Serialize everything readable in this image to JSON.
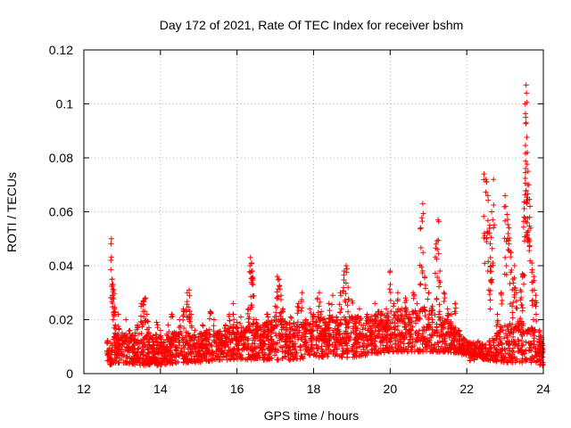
{
  "chart_data": {
    "type": "scatter",
    "title": "Day 172 of 2021, Rate Of TEC Index for receiver bshm",
    "xlabel": "GPS time / hours",
    "ylabel": "ROTI / TECUs",
    "xlim": [
      12,
      24
    ],
    "ylim": [
      0,
      0.12
    ],
    "xticks": [
      12,
      14,
      16,
      18,
      20,
      22,
      24
    ],
    "xtick_labels": [
      "12",
      "14",
      "16",
      "18",
      "20",
      "22",
      "24"
    ],
    "yticks": [
      0,
      0.02,
      0.04,
      0.06,
      0.08,
      0.1,
      0.12
    ],
    "ytick_labels": [
      "0",
      "0.02",
      "0.04",
      "0.06",
      "0.08",
      "0.1",
      "0.12"
    ],
    "grid": true,
    "marker": "+",
    "color": "#ff0000",
    "series": [
      {
        "name": "ROTI",
        "points": [
          [
            12.62,
            0.012
          ],
          [
            12.68,
            0.006
          ],
          [
            12.72,
            0.05
          ],
          [
            12.74,
            0.035
          ],
          [
            12.76,
            0.033
          ],
          [
            12.78,
            0.031
          ],
          [
            12.8,
            0.024
          ],
          [
            12.82,
            0.018
          ],
          [
            12.9,
            0.022
          ],
          [
            13.0,
            0.015
          ],
          [
            13.1,
            0.02
          ],
          [
            13.2,
            0.016
          ],
          [
            13.3,
            0.012
          ],
          [
            13.4,
            0.018
          ],
          [
            13.5,
            0.026
          ],
          [
            13.55,
            0.027
          ],
          [
            13.6,
            0.028
          ],
          [
            13.65,
            0.022
          ],
          [
            13.7,
            0.017
          ],
          [
            13.8,
            0.014
          ],
          [
            13.9,
            0.019
          ],
          [
            14.0,
            0.016
          ],
          [
            14.1,
            0.01
          ],
          [
            14.2,
            0.018
          ],
          [
            14.3,
            0.022
          ],
          [
            14.4,
            0.015
          ],
          [
            14.5,
            0.02
          ],
          [
            14.6,
            0.024
          ],
          [
            14.7,
            0.03
          ],
          [
            14.75,
            0.031
          ],
          [
            14.8,
            0.022
          ],
          [
            14.9,
            0.016
          ],
          [
            15.0,
            0.012
          ],
          [
            15.1,
            0.018
          ],
          [
            15.2,
            0.016
          ],
          [
            15.3,
            0.023
          ],
          [
            15.4,
            0.02
          ],
          [
            15.5,
            0.015
          ],
          [
            15.6,
            0.012
          ],
          [
            15.7,
            0.018
          ],
          [
            15.8,
            0.022
          ],
          [
            15.9,
            0.026
          ],
          [
            16.0,
            0.019
          ],
          [
            16.1,
            0.021
          ],
          [
            16.2,
            0.016
          ],
          [
            16.3,
            0.024
          ],
          [
            16.35,
            0.043
          ],
          [
            16.38,
            0.041
          ],
          [
            16.4,
            0.038
          ],
          [
            16.42,
            0.033
          ],
          [
            16.5,
            0.02
          ],
          [
            16.6,
            0.014
          ],
          [
            16.7,
            0.018
          ],
          [
            16.8,
            0.022
          ],
          [
            16.9,
            0.019
          ],
          [
            17.0,
            0.025
          ],
          [
            17.05,
            0.036
          ],
          [
            17.1,
            0.035
          ],
          [
            17.15,
            0.029
          ],
          [
            17.2,
            0.024
          ],
          [
            17.3,
            0.018
          ],
          [
            17.4,
            0.021
          ],
          [
            17.5,
            0.016
          ],
          [
            17.6,
            0.026
          ],
          [
            17.7,
            0.03
          ],
          [
            17.8,
            0.02
          ],
          [
            17.9,
            0.024
          ],
          [
            18.0,
            0.022
          ],
          [
            18.1,
            0.028
          ],
          [
            18.15,
            0.03
          ],
          [
            18.2,
            0.023
          ],
          [
            18.3,
            0.019
          ],
          [
            18.4,
            0.026
          ],
          [
            18.5,
            0.029
          ],
          [
            18.6,
            0.021
          ],
          [
            18.7,
            0.03
          ],
          [
            18.8,
            0.038
          ],
          [
            18.85,
            0.04
          ],
          [
            18.9,
            0.032
          ],
          [
            19.0,
            0.027
          ],
          [
            19.1,
            0.02
          ],
          [
            19.2,
            0.024
          ],
          [
            19.3,
            0.018
          ],
          [
            19.4,
            0.022
          ],
          [
            19.5,
            0.02
          ],
          [
            19.6,
            0.026
          ],
          [
            19.7,
            0.023
          ],
          [
            19.8,
            0.019
          ],
          [
            19.9,
            0.024
          ],
          [
            20.0,
            0.038
          ],
          [
            20.1,
            0.026
          ],
          [
            20.2,
            0.03
          ],
          [
            20.3,
            0.024
          ],
          [
            20.4,
            0.028
          ],
          [
            20.5,
            0.022
          ],
          [
            20.6,
            0.03
          ],
          [
            20.7,
            0.026
          ],
          [
            20.8,
            0.054
          ],
          [
            20.85,
            0.063
          ],
          [
            20.9,
            0.036
          ],
          [
            21.0,
            0.03
          ],
          [
            21.1,
            0.025
          ],
          [
            21.2,
            0.048
          ],
          [
            21.25,
            0.057
          ],
          [
            21.3,
            0.038
          ],
          [
            21.4,
            0.03
          ],
          [
            21.5,
            0.024
          ],
          [
            21.6,
            0.022
          ],
          [
            21.7,
            0.026
          ],
          [
            21.8,
            0.016
          ],
          [
            21.9,
            0.012
          ],
          [
            22.0,
            0.01
          ],
          [
            22.1,
            0.008
          ],
          [
            22.2,
            0.009
          ],
          [
            22.3,
            0.012
          ],
          [
            22.4,
            0.011
          ],
          [
            22.45,
            0.074
          ],
          [
            22.5,
            0.072
          ],
          [
            22.55,
            0.066
          ],
          [
            22.6,
            0.055
          ],
          [
            22.62,
            0.043
          ],
          [
            22.65,
            0.06
          ],
          [
            22.7,
            0.072
          ],
          [
            22.8,
            0.022
          ],
          [
            22.9,
            0.03
          ],
          [
            23.0,
            0.066
          ],
          [
            23.05,
            0.059
          ],
          [
            23.1,
            0.054
          ],
          [
            23.15,
            0.045
          ],
          [
            23.2,
            0.035
          ],
          [
            23.25,
            0.04
          ],
          [
            23.3,
            0.03
          ],
          [
            23.4,
            0.031
          ],
          [
            23.45,
            0.037
          ],
          [
            23.5,
            0.058
          ],
          [
            23.52,
            0.1
          ],
          [
            23.54,
            0.095
          ],
          [
            23.55,
            0.107
          ],
          [
            23.56,
            0.104
          ],
          [
            23.58,
            0.082
          ],
          [
            23.6,
            0.075
          ],
          [
            23.62,
            0.07
          ],
          [
            23.65,
            0.062
          ],
          [
            23.7,
            0.041
          ],
          [
            23.75,
            0.036
          ],
          [
            23.8,
            0.029
          ],
          [
            23.9,
            0.016
          ],
          [
            23.95,
            0.012
          ]
        ],
        "dense_band": [
          [
            12.6,
            0.003,
            0.013
          ],
          [
            13.0,
            0.004,
            0.016
          ],
          [
            13.5,
            0.003,
            0.015
          ],
          [
            14.0,
            0.003,
            0.014
          ],
          [
            14.5,
            0.004,
            0.016
          ],
          [
            15.0,
            0.004,
            0.015
          ],
          [
            15.5,
            0.005,
            0.016
          ],
          [
            16.0,
            0.005,
            0.018
          ],
          [
            16.5,
            0.005,
            0.018
          ],
          [
            17.0,
            0.005,
            0.02
          ],
          [
            17.5,
            0.005,
            0.019
          ],
          [
            18.0,
            0.006,
            0.02
          ],
          [
            18.5,
            0.006,
            0.021
          ],
          [
            19.0,
            0.006,
            0.021
          ],
          [
            19.5,
            0.007,
            0.022
          ],
          [
            20.0,
            0.008,
            0.024
          ],
          [
            20.5,
            0.008,
            0.025
          ],
          [
            21.0,
            0.008,
            0.024
          ],
          [
            21.5,
            0.008,
            0.02
          ],
          [
            22.0,
            0.007,
            0.012
          ],
          [
            22.5,
            0.005,
            0.011
          ],
          [
            23.0,
            0.004,
            0.018
          ],
          [
            23.5,
            0.004,
            0.02
          ],
          [
            24.0,
            0.003,
            0.014
          ]
        ]
      }
    ]
  }
}
